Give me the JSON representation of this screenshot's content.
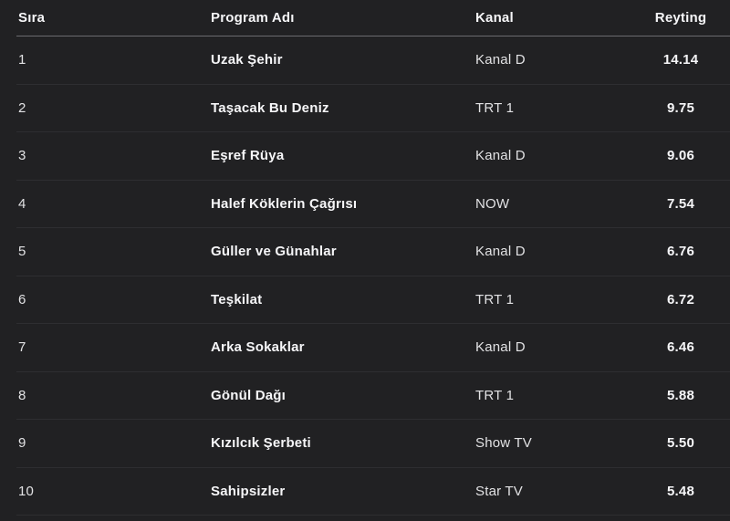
{
  "chart_data": {
    "type": "table",
    "columns": [
      "Sıra",
      "Program Adı",
      "Kanal",
      "Reyting"
    ],
    "rows": [
      [
        "1",
        "Uzak Şehir",
        "Kanal D",
        "14.14"
      ],
      [
        "2",
        "Taşacak Bu Deniz",
        "TRT 1",
        "9.75"
      ],
      [
        "3",
        "Eşref Rüya",
        "Kanal D",
        "9.06"
      ],
      [
        "4",
        "Halef Köklerin Çağrısı",
        "NOW",
        "7.54"
      ],
      [
        "5",
        "Güller ve Günahlar",
        "Kanal D",
        "6.76"
      ],
      [
        "6",
        "Teşkilat",
        "TRT 1",
        "6.72"
      ],
      [
        "7",
        "Arka Sokaklar",
        "Kanal D",
        "6.46"
      ],
      [
        "8",
        "Gönül Dağı",
        "TRT 1",
        "5.88"
      ],
      [
        "9",
        "Kızılcık Şerbeti",
        "Show TV",
        "5.50"
      ],
      [
        "10",
        "Sahipsizler",
        "Star TV",
        "5.48"
      ]
    ],
    "layout": {
      "grid": "horizontal-row-dividers",
      "header_position": "top"
    }
  },
  "colors": {
    "background": "#212123",
    "text_bold": "#f6f6f8",
    "text_regular": "#e2e2e4",
    "header_divider": "#6a6a6e",
    "row_divider": "#2e2e31"
  }
}
